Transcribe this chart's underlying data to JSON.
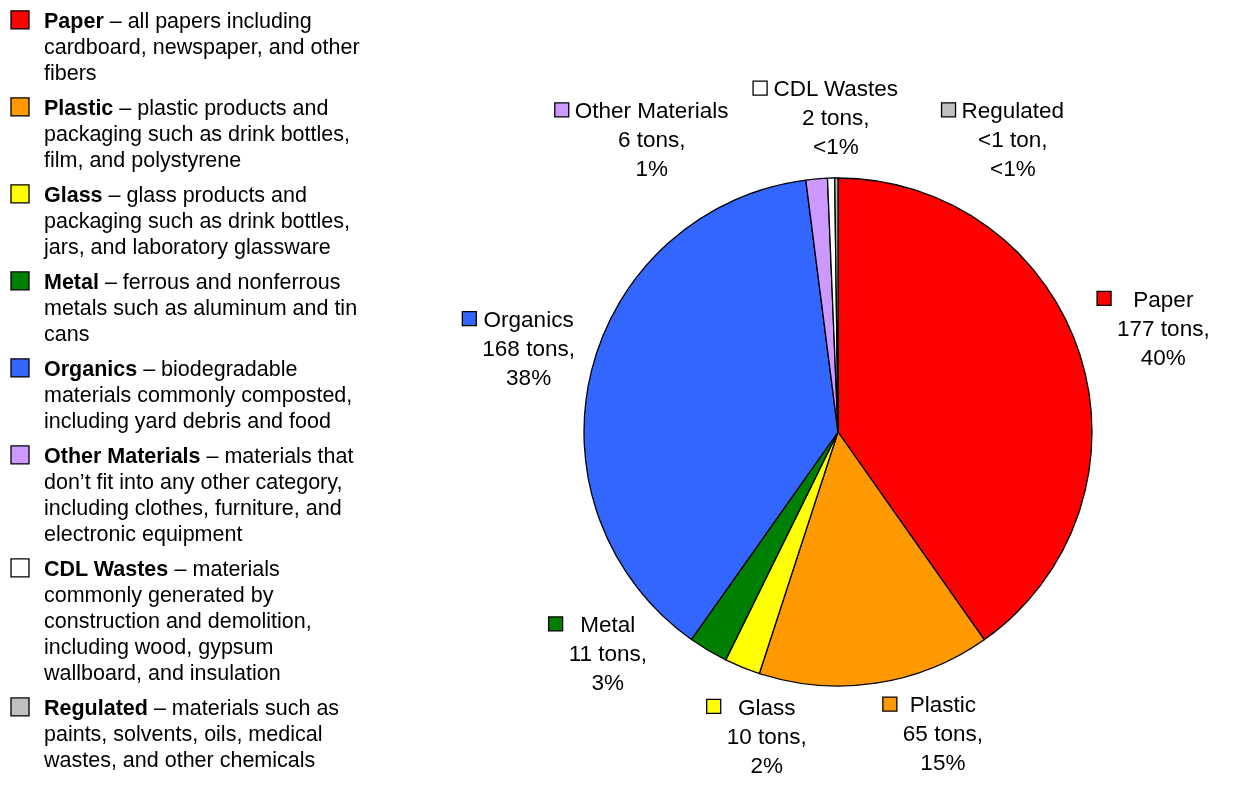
{
  "chart_data": {
    "type": "pie",
    "categories": [
      "Paper",
      "Plastic",
      "Glass",
      "Metal",
      "Organics",
      "Other Materials",
      "CDL Wastes",
      "Regulated"
    ],
    "values": [
      177,
      65,
      10,
      11,
      168,
      6,
      2,
      0.9
    ],
    "colors": [
      "#ff0000",
      "#ff9900",
      "#ffff00",
      "#008000",
      "#3366ff",
      "#cc99ff",
      "#ffffff",
      "#c0c0c0"
    ],
    "value_labels": [
      "177 tons, 40%",
      "65 tons, 15%",
      "10 tons, 2%",
      "11 tons, 3%",
      "168 tons, 38%",
      "6 tons, 1%",
      "2 tons, <1%",
      "<1 ton, <1%"
    ],
    "legend": "left",
    "annotations": [
      "Paper – all papers including cardboard, newspaper, and other fibers",
      "Plastic – plastic products and packaging such as drink bottles, film, and polystyrene",
      "Glass – glass products and packaging such as drink bottles, jars, and laboratory glassware",
      "Metal – ferrous and nonferrous metals such as aluminum and tin cans",
      "Organics – biodegradable materials commonly composted, including yard debris and food",
      "Other Materials – materials that don’t fit into any other category, including clothes, furniture, and electronic equipment",
      "CDL Wastes – materials commonly generated by construction and demolition, including wood, gypsum wallboard, and insulation",
      "Regulated – materials such as paints, solvents, oils, medical wastes, and other chemicals"
    ]
  }
}
